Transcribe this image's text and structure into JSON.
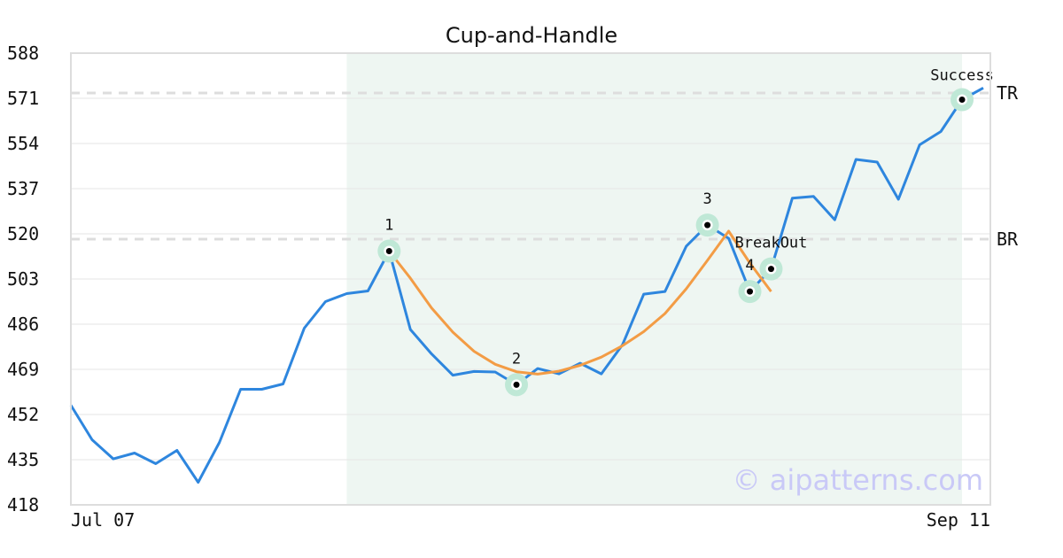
{
  "chart_data": {
    "type": "line",
    "title": "Cup-and-Handle",
    "ylim": [
      418,
      588
    ],
    "y_ticks": [
      588,
      571,
      554,
      537,
      520,
      503,
      486,
      469,
      452,
      435,
      418
    ],
    "x_tick_labels": [
      "Jul 07",
      "Sep 11"
    ],
    "grid": true,
    "highlight_range_index": [
      13,
      42
    ],
    "series": [
      {
        "values": [
          455.5,
          442.5,
          435.3,
          437.5,
          433.5,
          438.5,
          426.5,
          441.5,
          461.5,
          461.5,
          463.5,
          484.5,
          494.5,
          497.5,
          498.5,
          513.5,
          484.0,
          474.8,
          466.8,
          468.2,
          468.0,
          463.2,
          469.3,
          467.3,
          471.3,
          467.3,
          478.3,
          497.3,
          498.3,
          515.3,
          523.3,
          518.3,
          498.3,
          506.8,
          533.4,
          534.1,
          525.3,
          548.0,
          547.0,
          533.0,
          553.5,
          558.5,
          570.5,
          574.9
        ]
      },
      {
        "start_index": 15,
        "values": [
          513.5,
          503.3,
          492.1,
          483.0,
          475.8,
          470.9,
          468.1,
          467.2,
          468.3,
          470.5,
          473.6,
          477.9,
          483.2,
          490.0,
          499.3,
          510.0,
          521.0,
          509.0,
          498.3
        ]
      }
    ],
    "levels": [
      {
        "label": "TR",
        "value": 573.0
      },
      {
        "label": "BR",
        "value": 518.0
      }
    ],
    "points": [
      {
        "label": "1",
        "index": 15,
        "value": 513.5
      },
      {
        "label": "2",
        "index": 21,
        "value": 463.2
      },
      {
        "label": "3",
        "index": 30,
        "value": 523.3
      },
      {
        "label": "4",
        "index": 32,
        "value": 498.3
      },
      {
        "label": "BreakOut",
        "index": 33,
        "value": 506.8
      },
      {
        "label": "Success",
        "index": 42,
        "value": 570.5
      }
    ],
    "colors": {
      "price_line": "#2e86de",
      "cup_line": "#f39c45",
      "highlight": "#eef6f2",
      "marker_ring": "#bfe8d6",
      "level_line": "#dddddd",
      "grid": "#e6e6e6",
      "frame": "#dddddd"
    }
  },
  "watermark": "© aipatterns.com"
}
